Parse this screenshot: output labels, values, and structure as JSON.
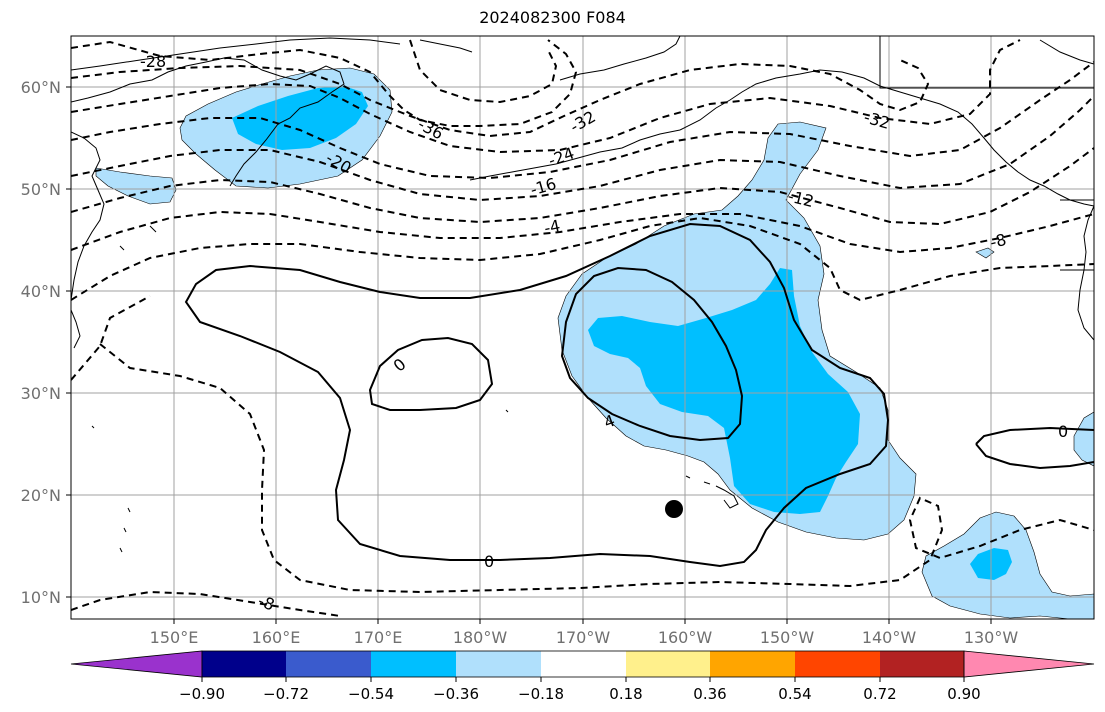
{
  "title": "2024082300 F084",
  "lat_labels": [
    "60°N",
    "50°N",
    "40°N",
    "30°N",
    "20°N",
    "10°N"
  ],
  "lon_labels": [
    "150°E",
    "160°E",
    "170°E",
    "180°W",
    "170°W",
    "160°W",
    "150°W",
    "140°W",
    "130°W"
  ],
  "colorbar": {
    "tick_labels": [
      "−0.90",
      "−0.72",
      "−0.54",
      "−0.36",
      "−0.18",
      "0.18",
      "0.36",
      "0.54",
      "0.72",
      "0.90"
    ],
    "colors": [
      "#9a32cd",
      "#00008b",
      "#3a5bcd",
      "#00bfff",
      "#b0e0fc",
      "#ffffff",
      "#fff08c",
      "#ffa500",
      "#ff4500",
      "#b22222",
      "#ff88b0"
    ]
  },
  "contour_labels": [
    {
      "text": "-28",
      "name": "contour-label-minus28-west"
    },
    {
      "text": "-36",
      "name": "contour-label-minus36"
    },
    {
      "text": "-32",
      "name": "contour-label-minus32-central"
    },
    {
      "text": "-32",
      "name": "contour-label-minus32-east"
    },
    {
      "text": "-24",
      "name": "contour-label-minus24"
    },
    {
      "text": "-20",
      "name": "contour-label-minus20"
    },
    {
      "text": "-16",
      "name": "contour-label-minus16"
    },
    {
      "text": "-12",
      "name": "contour-label-minus12"
    },
    {
      "text": "-8",
      "name": "contour-label-minus8-east"
    },
    {
      "text": "-4",
      "name": "contour-label-minus4"
    },
    {
      "text": "0",
      "name": "contour-label-zero-west"
    },
    {
      "text": "4",
      "name": "contour-label-four"
    },
    {
      "text": "0",
      "name": "contour-label-zero-south"
    },
    {
      "text": "0",
      "name": "contour-label-zero-east"
    },
    {
      "text": "-8",
      "name": "contour-label-minus8-south"
    }
  ],
  "colors": {
    "shade_light": "#b0e0fc",
    "shade_deep": "#00bfff",
    "contour": "#000000",
    "grid": "#a0a0a0",
    "tick_label": "#707070"
  }
}
